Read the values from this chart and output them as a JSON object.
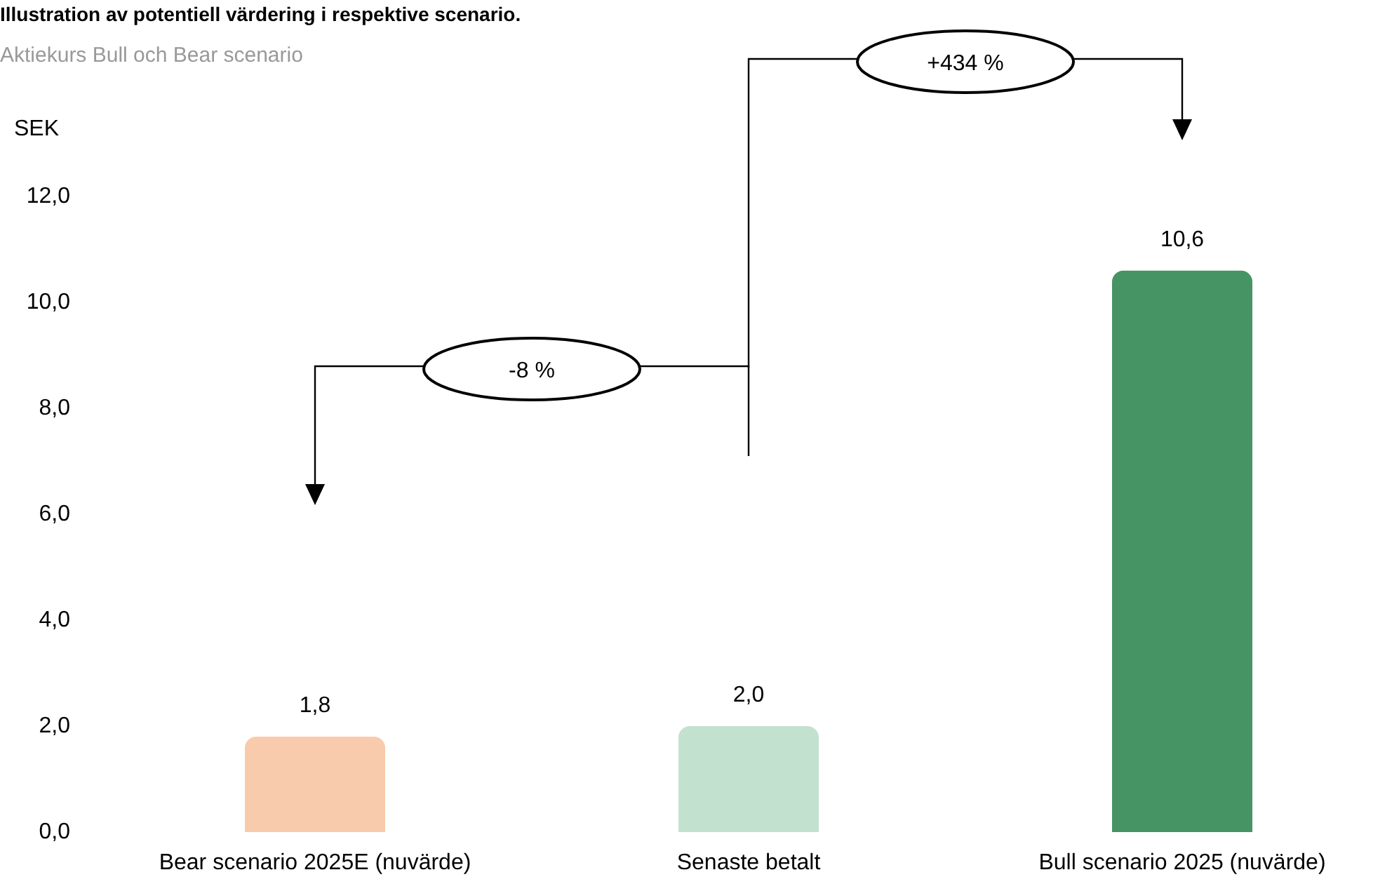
{
  "chart_data": {
    "type": "bar",
    "title": "Illustration av potentiell värdering i respektive scenario.",
    "subtitle": "Aktiekurs Bull och Bear scenario",
    "ylabel": "SEK",
    "categories": [
      "Bear scenario 2025E (nuvärde)",
      "Senaste betalt",
      "Bull scenario 2025 (nuvärde)"
    ],
    "values": [
      1.8,
      2.0,
      10.6
    ],
    "colors": [
      "#f7cbab",
      "#c3e1cf",
      "#469463"
    ],
    "value_labels": [
      "1,8",
      "2,0",
      "10,6"
    ],
    "ylim": [
      0,
      12
    ],
    "yticks": [
      {
        "value": 0,
        "label": "0,0"
      },
      {
        "value": 2,
        "label": "2,0"
      },
      {
        "value": 4,
        "label": "4,0"
      },
      {
        "value": 6,
        "label": "6,0"
      },
      {
        "value": 8,
        "label": "8,0"
      },
      {
        "value": 10,
        "label": "10,0"
      },
      {
        "value": 12,
        "label": "12,0"
      }
    ],
    "annotations": [
      "+434 %",
      "-8 %"
    ],
    "grid": false
  }
}
